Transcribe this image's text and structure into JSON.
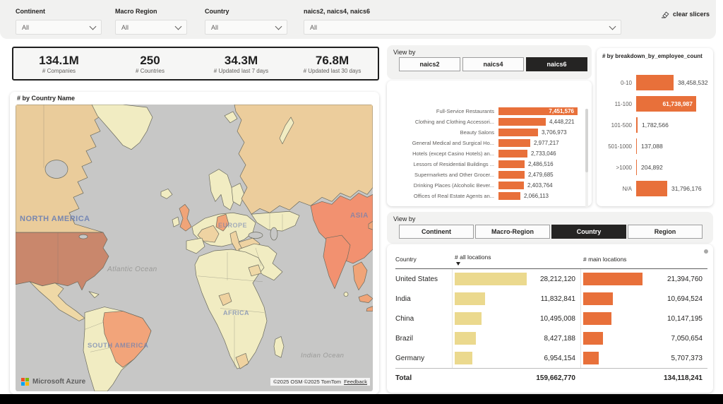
{
  "slicers": {
    "clear_label": "clear slicers",
    "items": [
      {
        "label": "Continent",
        "value": "All"
      },
      {
        "label": "Macro Region",
        "value": "All"
      },
      {
        "label": "Country",
        "value": "All"
      },
      {
        "label": "naics2, naics4, naics6",
        "value": "All"
      }
    ]
  },
  "kpis": [
    {
      "value": "134.1M",
      "label": "# Companies"
    },
    {
      "value": "250",
      "label": "# Countries"
    },
    {
      "value": "34.3M",
      "label": "# Updated last 7 days"
    },
    {
      "value": "76.8M",
      "label": "# Updated last 30 days"
    }
  ],
  "map": {
    "title": "# by Country Name",
    "region_labels": [
      "NORTH AMERICA",
      "EUROPE",
      "ASIA",
      "AFRICA",
      "SOUTH AMERICA"
    ],
    "ocean_labels": [
      "Atlantic Ocean",
      "Indian Ocean"
    ],
    "provider": "Microsoft Azure",
    "attribution": "©2025 OSM ©2025 TomTom",
    "feedback_label": "Feedback",
    "choropleth_highlights": [
      "United States",
      "India",
      "China",
      "Brazil",
      "Germany",
      "United Kingdom"
    ]
  },
  "naics_panel": {
    "view_by_label": "View by",
    "tabs": [
      {
        "label": "naics2",
        "active": false
      },
      {
        "label": "naics4",
        "active": false
      },
      {
        "label": "naics6",
        "active": true
      }
    ],
    "chart_data": {
      "type": "bar",
      "orientation": "horizontal",
      "categories": [
        "Full-Service Restaurants",
        "Clothing and Clothing Accessori...",
        "Beauty Salons",
        "General Medical and Surgical Ho...",
        "Hotels (except Casino Hotels) an...",
        "Lessors of Residential Buildings ...",
        "Supermarkets and Other Grocer...",
        "Drinking Places (Alcoholic Bever...",
        "Offices of Real Estate Agents an..."
      ],
      "values": [
        7451576,
        4448221,
        3706973,
        2977217,
        2733046,
        2486516,
        2479685,
        2403764,
        2066113
      ]
    }
  },
  "employee_panel": {
    "title": "# by breakdown_by_employee_count",
    "chart_data": {
      "type": "bar",
      "orientation": "horizontal",
      "categories": [
        "0-10",
        "11-100",
        "101-500",
        "501-1000",
        ">1000",
        "N/A"
      ],
      "values": [
        38458532,
        61738987,
        1782566,
        137088,
        204892,
        31796176
      ]
    }
  },
  "geo_panel": {
    "view_by_label": "View by",
    "tabs": [
      {
        "label": "Continent",
        "active": false
      },
      {
        "label": "Macro-Region",
        "active": false
      },
      {
        "label": "Country",
        "active": true
      },
      {
        "label": "Region",
        "active": false
      }
    ],
    "table": {
      "columns": [
        "Country",
        "# all locations",
        "# main locations"
      ],
      "sorted_by": "# all locations",
      "sort_direction": "descending",
      "rows": [
        {
          "name": "United States",
          "all": 28212120,
          "main": 21394760
        },
        {
          "name": "India",
          "all": 11832841,
          "main": 10694524
        },
        {
          "name": "China",
          "all": 10495008,
          "main": 10147195
        },
        {
          "name": "Brazil",
          "all": 8427188,
          "main": 7050654
        },
        {
          "name": "Germany",
          "all": 6954154,
          "main": 5707373
        }
      ],
      "total": {
        "label": "Total",
        "all": 159662770,
        "main": 134118241
      }
    },
    "chart_data": {
      "type": "table",
      "categories": [
        "United States",
        "India",
        "China",
        "Brazil",
        "Germany"
      ],
      "series": [
        {
          "name": "# all locations",
          "values": [
            28212120,
            11832841,
            10495008,
            8427188,
            6954154
          ]
        },
        {
          "name": "# main locations",
          "values": [
            21394760,
            10694524,
            10147195,
            7050654,
            5707373
          ]
        }
      ]
    }
  },
  "colors": {
    "accent_orange": "#E8703A",
    "bar_yellow": "#EBD98E",
    "tab_active": "#252423",
    "map_ocean": "#C7C7C6",
    "map_land": "#F1ECC2",
    "map_tan": "#EACC9B",
    "map_us": "#C9876C",
    "map_salmon": "#F29170"
  }
}
